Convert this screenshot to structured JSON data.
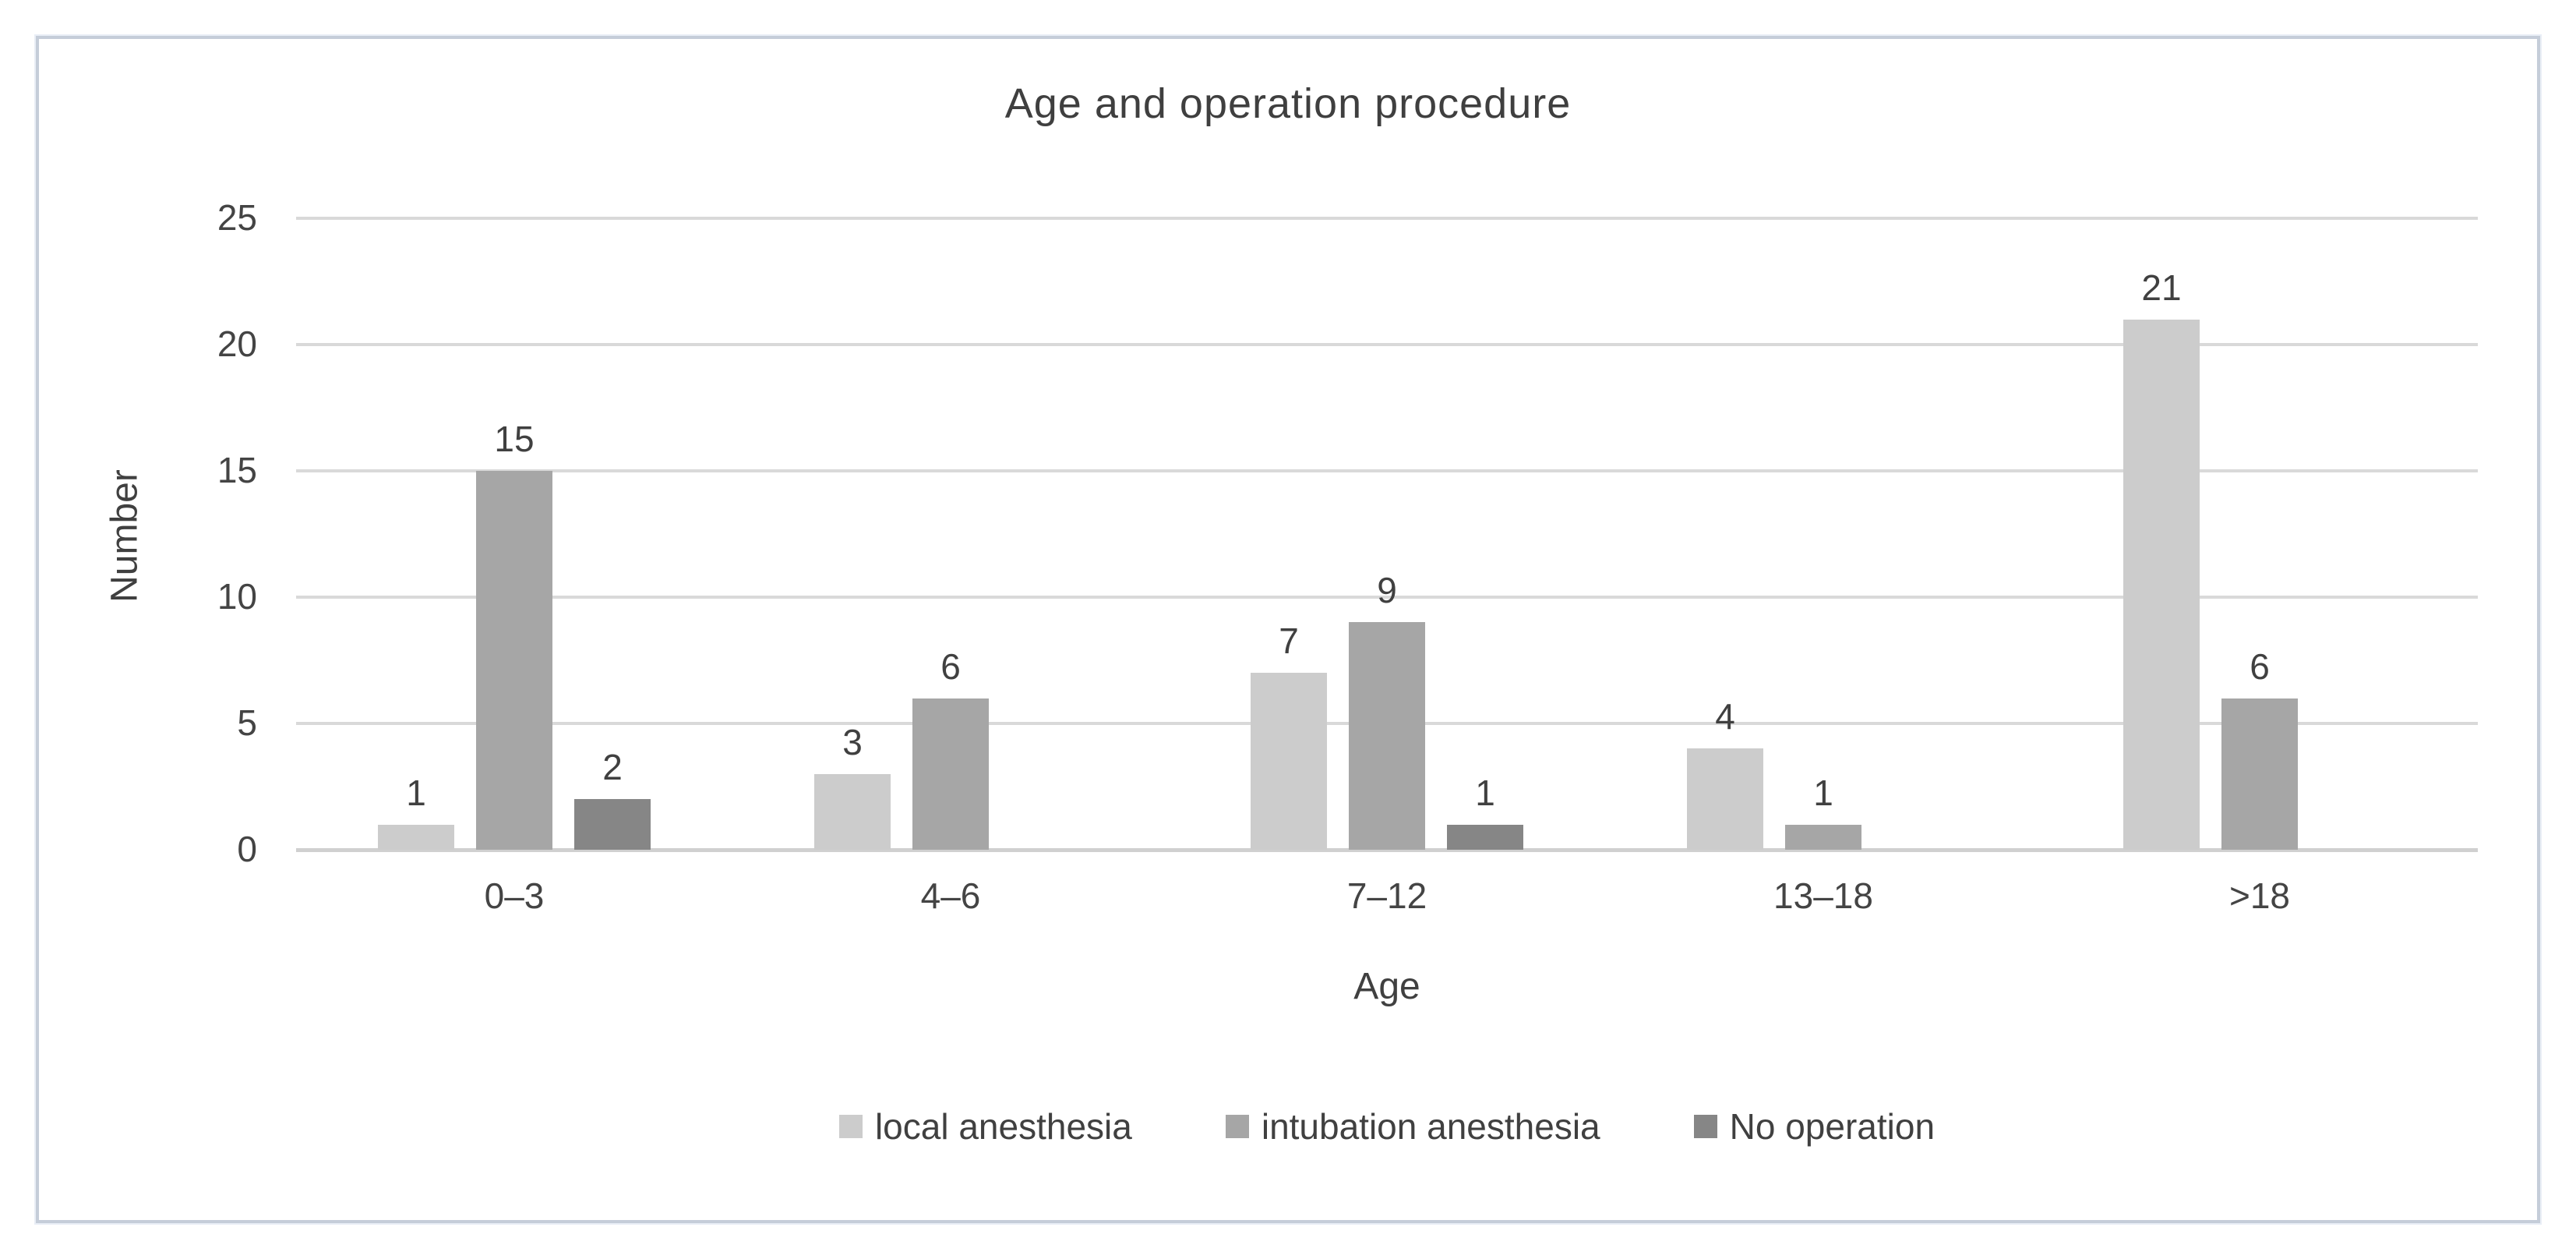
{
  "chart_data": {
    "type": "bar",
    "title": "Age and operation procedure",
    "xlabel": "Age",
    "ylabel": "Number",
    "categories": [
      "0–3",
      "4–6",
      "7–12",
      "13–18",
      ">18"
    ],
    "series": [
      {
        "name": "local anesthesia",
        "color": "#cccccc",
        "values": [
          1,
          3,
          7,
          4,
          21
        ]
      },
      {
        "name": "intubation anesthesia",
        "color": "#a6a6a6",
        "values": [
          15,
          6,
          9,
          1,
          6
        ]
      },
      {
        "name": "No operation",
        "color": "#868686",
        "values": [
          2,
          0,
          1,
          0,
          0
        ]
      }
    ],
    "ylim": [
      0,
      25
    ],
    "yticks": [
      0,
      5,
      10,
      15,
      20,
      25
    ],
    "grid": true,
    "data_labels": true,
    "legend_position": "bottom",
    "colors": {
      "gridline": "#d9d9d9",
      "axis_text": "#444444",
      "title_text": "#3f3f3f",
      "frame_border": "#c5cdd9"
    }
  }
}
